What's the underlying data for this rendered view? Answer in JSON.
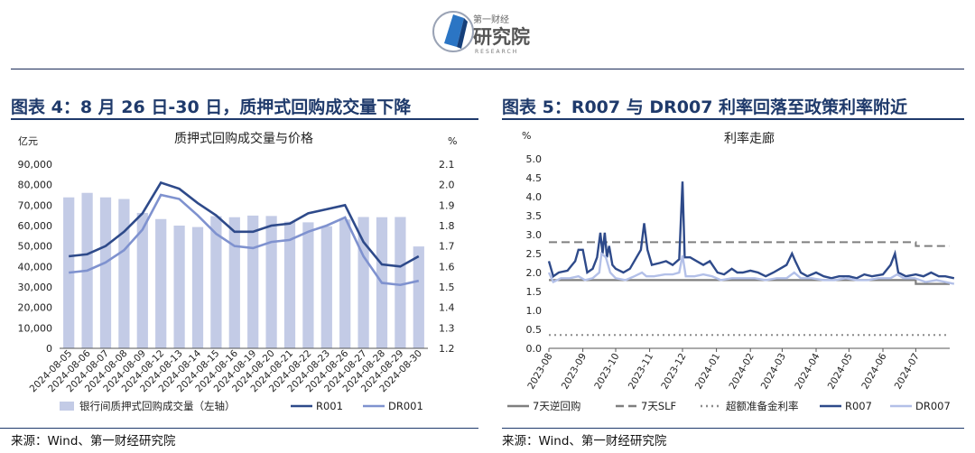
{
  "logo": {
    "top_text": "第一财经",
    "main_text": "研究院",
    "sub_text": "RESEARCH"
  },
  "fig4": {
    "title": "图表 4：8 月 26 日-30 日，质押式回购成交量下降",
    "source": "来源：Wind、第一财经研究院"
  },
  "fig5": {
    "title": "图表 5：R007 与 DR007 利率回落至政策利率附近",
    "source": "来源：Wind、第一财经研究院"
  },
  "chart_data": [
    {
      "type": "bar",
      "title": "质押式回购成交量与价格",
      "y_left_unit": "亿元",
      "y_right_unit": "%",
      "ylim_left": [
        0,
        90000
      ],
      "ylim_right": [
        1.2,
        2.1
      ],
      "y_left_ticks": [
        "0",
        "10,000",
        "20,000",
        "30,000",
        "40,000",
        "50,000",
        "60,000",
        "70,000",
        "80,000",
        "90,000"
      ],
      "y_right_ticks": [
        "1.2",
        "1.3",
        "1.4",
        "1.5",
        "1.6",
        "1.7",
        "1.8",
        "1.9",
        "2.0",
        "2.1"
      ],
      "categories": [
        "2024-08-05",
        "2024-08-06",
        "2024-08-07",
        "2024-08-08",
        "2024-08-09",
        "2024-08-12",
        "2024-08-13",
        "2024-08-14",
        "2024-08-15",
        "2024-08-16",
        "2024-08-19",
        "2024-08-20",
        "2024-08-21",
        "2024-08-22",
        "2024-08-23",
        "2024-08-26",
        "2024-08-27",
        "2024-08-28",
        "2024-08-29",
        "2024-08-30"
      ],
      "series": [
        {
          "name": "银行间质押式回购成交量（左轴）",
          "axis": "left",
          "kind": "bar",
          "color": "#c3cbe6",
          "values": [
            73800,
            76000,
            73800,
            73000,
            66200,
            63200,
            60000,
            59300,
            64600,
            64100,
            64900,
            64700,
            61900,
            61600,
            59700,
            63000,
            64200,
            64100,
            64200,
            49800
          ]
        },
        {
          "name": "R001",
          "axis": "right",
          "kind": "line",
          "color": "#2e4a8a",
          "values": [
            1.65,
            1.66,
            1.7,
            1.77,
            1.86,
            2.01,
            1.98,
            1.91,
            1.85,
            1.77,
            1.77,
            1.8,
            1.81,
            1.86,
            1.88,
            1.9,
            1.72,
            1.61,
            1.6,
            1.65
          ]
        },
        {
          "name": "DR001",
          "axis": "right",
          "kind": "line",
          "color": "#7f92cf",
          "values": [
            1.57,
            1.58,
            1.62,
            1.68,
            1.78,
            1.95,
            1.93,
            1.85,
            1.76,
            1.7,
            1.69,
            1.72,
            1.73,
            1.77,
            1.8,
            1.84,
            1.65,
            1.52,
            1.51,
            1.53
          ]
        }
      ]
    },
    {
      "type": "line",
      "title": "利率走廊",
      "y_unit": "%",
      "ylim": [
        0.0,
        5.0
      ],
      "y_ticks": [
        "0.0",
        "0.5",
        "1.0",
        "1.5",
        "2.0",
        "2.5",
        "3.0",
        "3.5",
        "4.0",
        "4.5",
        "5.0"
      ],
      "x_ticks": [
        "2023-08",
        "2023-09",
        "2023-10",
        "2023-11",
        "2023-12",
        "2024-01",
        "2024-02",
        "2024-03",
        "2024-04",
        "2024-05",
        "2024-06",
        "2024-07"
      ],
      "x_start": "2023-08",
      "x_end": "2024-08",
      "series": [
        {
          "name": "7天逆回购",
          "color": "#7f7f7f",
          "style": "solid",
          "points": [
            [
              "2023-08",
              1.8
            ],
            [
              "2024-07",
              1.8
            ],
            [
              "2024-07",
              1.7
            ],
            [
              "2024-08",
              1.7
            ]
          ]
        },
        {
          "name": "7天SLF",
          "color": "#7f7f7f",
          "style": "dash",
          "points": [
            [
              "2023-08",
              2.8
            ],
            [
              "2024-07",
              2.8
            ],
            [
              "2024-07",
              2.7
            ],
            [
              "2024-08",
              2.7
            ]
          ]
        },
        {
          "name": "超额准备金利率",
          "color": "#8c8c8c",
          "style": "dot",
          "points": [
            [
              "2023-08",
              0.35
            ],
            [
              "2024-08",
              0.35
            ]
          ]
        },
        {
          "name": "R007",
          "color": "#2e4a8a",
          "style": "solid",
          "points": [
            [
              "2023-08",
              2.3
            ],
            [
              "2023-08-05",
              1.9
            ],
            [
              "2023-08-10",
              2.0
            ],
            [
              "2023-08-18",
              2.05
            ],
            [
              "2023-08-25",
              2.3
            ],
            [
              "2023-08-28",
              2.6
            ],
            [
              "2023-09-01",
              2.6
            ],
            [
              "2023-09-05",
              2.0
            ],
            [
              "2023-09-10",
              2.1
            ],
            [
              "2023-09-14",
              2.4
            ],
            [
              "2023-09-17",
              3.05
            ],
            [
              "2023-09-19",
              2.5
            ],
            [
              "2023-09-21",
              3.05
            ],
            [
              "2023-09-23",
              2.4
            ],
            [
              "2023-09-25",
              2.7
            ],
            [
              "2023-09-28",
              2.2
            ],
            [
              "2023-10-01",
              2.1
            ],
            [
              "2023-10-08",
              2.0
            ],
            [
              "2023-10-14",
              2.1
            ],
            [
              "2023-10-20",
              2.4
            ],
            [
              "2023-10-24",
              2.6
            ],
            [
              "2023-10-27",
              3.3
            ],
            [
              "2023-10-30",
              2.6
            ],
            [
              "2023-11-03",
              2.2
            ],
            [
              "2023-11-10",
              2.25
            ],
            [
              "2023-11-16",
              2.3
            ],
            [
              "2023-11-22",
              2.2
            ],
            [
              "2023-11-28",
              2.35
            ],
            [
              "2023-12-01",
              4.4
            ],
            [
              "2023-12-03",
              2.4
            ],
            [
              "2023-12-08",
              2.4
            ],
            [
              "2023-12-14",
              2.3
            ],
            [
              "2023-12-20",
              2.2
            ],
            [
              "2023-12-26",
              2.3
            ],
            [
              "2024-01-02",
              2.0
            ],
            [
              "2024-01-08",
              1.95
            ],
            [
              "2024-01-15",
              2.1
            ],
            [
              "2024-01-20",
              2.0
            ],
            [
              "2024-01-25",
              2.0
            ],
            [
              "2024-02-01",
              2.05
            ],
            [
              "2024-02-08",
              2.0
            ],
            [
              "2024-02-15",
              1.9
            ],
            [
              "2024-02-22",
              2.0
            ],
            [
              "2024-02-28",
              2.1
            ],
            [
              "2024-03-05",
              2.2
            ],
            [
              "2024-03-10",
              2.5
            ],
            [
              "2024-03-13",
              2.3
            ],
            [
              "2024-03-18",
              2.0
            ],
            [
              "2024-03-24",
              1.9
            ],
            [
              "2024-04-01",
              2.0
            ],
            [
              "2024-04-08",
              1.9
            ],
            [
              "2024-04-15",
              1.85
            ],
            [
              "2024-04-22",
              1.9
            ],
            [
              "2024-05-01",
              1.9
            ],
            [
              "2024-05-08",
              1.85
            ],
            [
              "2024-05-15",
              1.95
            ],
            [
              "2024-05-22",
              1.9
            ],
            [
              "2024-06-01",
              1.95
            ],
            [
              "2024-06-08",
              2.2
            ],
            [
              "2024-06-12",
              2.5
            ],
            [
              "2024-06-15",
              2.0
            ],
            [
              "2024-06-22",
              1.9
            ],
            [
              "2024-07-01",
              1.95
            ],
            [
              "2024-07-08",
              1.9
            ],
            [
              "2024-07-15",
              2.0
            ],
            [
              "2024-07-22",
              1.9
            ],
            [
              "2024-07-28",
              1.9
            ],
            [
              "2024-08-05",
              1.85
            ]
          ]
        },
        {
          "name": "DR007",
          "color": "#b3c0e8",
          "style": "solid",
          "points": [
            [
              "2023-08",
              2.0
            ],
            [
              "2023-08-05",
              1.75
            ],
            [
              "2023-08-12",
              1.85
            ],
            [
              "2023-08-20",
              1.85
            ],
            [
              "2023-08-28",
              1.9
            ],
            [
              "2023-09-03",
              1.8
            ],
            [
              "2023-09-10",
              1.85
            ],
            [
              "2023-09-16",
              2.0
            ],
            [
              "2023-09-18",
              2.5
            ],
            [
              "2023-09-22",
              2.4
            ],
            [
              "2023-09-26",
              2.0
            ],
            [
              "2023-10-01",
              1.85
            ],
            [
              "2023-10-10",
              1.8
            ],
            [
              "2023-10-18",
              1.9
            ],
            [
              "2023-10-25",
              2.0
            ],
            [
              "2023-10-29",
              1.9
            ],
            [
              "2023-11-05",
              1.9
            ],
            [
              "2023-11-15",
              1.95
            ],
            [
              "2023-11-22",
              1.95
            ],
            [
              "2023-11-28",
              2.0
            ],
            [
              "2023-12-01",
              2.45
            ],
            [
              "2023-12-04",
              1.9
            ],
            [
              "2023-12-12",
              1.9
            ],
            [
              "2023-12-20",
              1.95
            ],
            [
              "2023-12-28",
              1.9
            ],
            [
              "2024-01-05",
              1.8
            ],
            [
              "2024-01-15",
              1.85
            ],
            [
              "2024-01-25",
              1.85
            ],
            [
              "2024-02-05",
              1.85
            ],
            [
              "2024-02-15",
              1.8
            ],
            [
              "2024-02-25",
              1.85
            ],
            [
              "2024-03-05",
              1.85
            ],
            [
              "2024-03-12",
              2.0
            ],
            [
              "2024-03-18",
              1.85
            ],
            [
              "2024-03-28",
              1.85
            ],
            [
              "2024-04-08",
              1.8
            ],
            [
              "2024-04-18",
              1.8
            ],
            [
              "2024-04-28",
              1.85
            ],
            [
              "2024-05-08",
              1.8
            ],
            [
              "2024-05-18",
              1.8
            ],
            [
              "2024-05-28",
              1.85
            ],
            [
              "2024-06-08",
              1.85
            ],
            [
              "2024-06-14",
              1.95
            ],
            [
              "2024-06-20",
              1.85
            ],
            [
              "2024-06-30",
              1.85
            ],
            [
              "2024-07-10",
              1.75
            ],
            [
              "2024-07-20",
              1.8
            ],
            [
              "2024-07-28",
              1.75
            ],
            [
              "2024-08-05",
              1.7
            ]
          ]
        }
      ]
    }
  ]
}
